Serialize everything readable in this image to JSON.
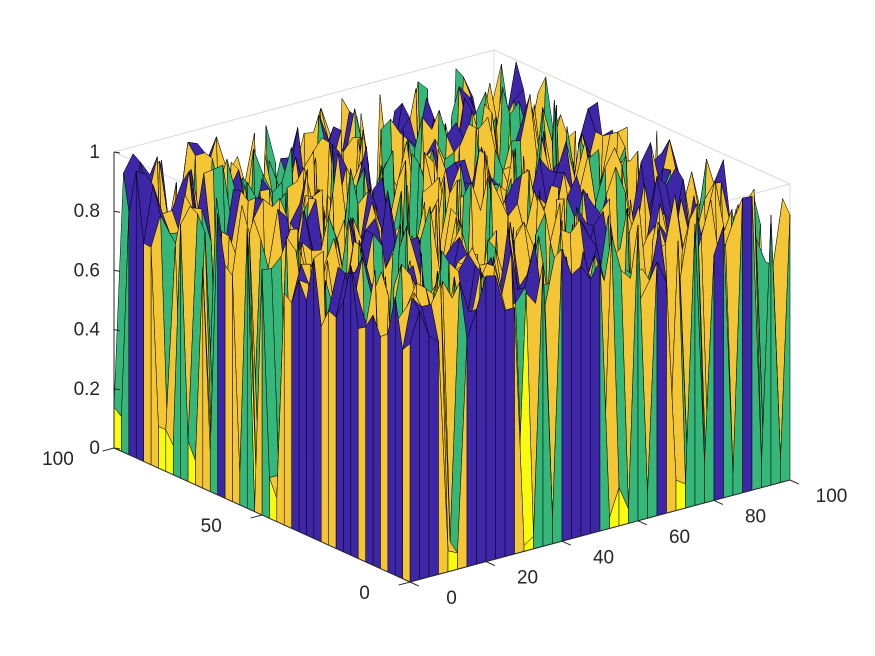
{
  "chart_data": {
    "type": "surface",
    "title": "",
    "xlabel": "",
    "ylabel": "",
    "zlabel": "",
    "colormap": "parula",
    "colors": {
      "low": "#3e26a8",
      "mid": "#35b779",
      "midhigh": "#f4c534",
      "high": "#f9fb0e",
      "edge": "#000000"
    },
    "x_axis": {
      "range": [
        0,
        100
      ],
      "ticks": [
        0,
        20,
        40,
        60,
        80,
        100
      ],
      "tick_labels": [
        "0",
        "20",
        "40",
        "60",
        "80",
        "100"
      ]
    },
    "y_axis": {
      "range": [
        0,
        100
      ],
      "ticks": [
        0,
        50,
        100
      ],
      "tick_labels": [
        "0",
        "50",
        "100"
      ]
    },
    "z_axis": {
      "range": [
        0,
        1
      ],
      "ticks": [
        0,
        0.2,
        0.4,
        0.6,
        0.8,
        1
      ],
      "tick_labels": [
        "0",
        "0.2",
        "0.4",
        "0.6",
        "0.8",
        "1"
      ]
    },
    "grid_size": [
      100,
      100
    ],
    "description_of_values": "random values in [0,1], mostly near 1 with frequent drops to 0",
    "grid": false,
    "box": true
  }
}
